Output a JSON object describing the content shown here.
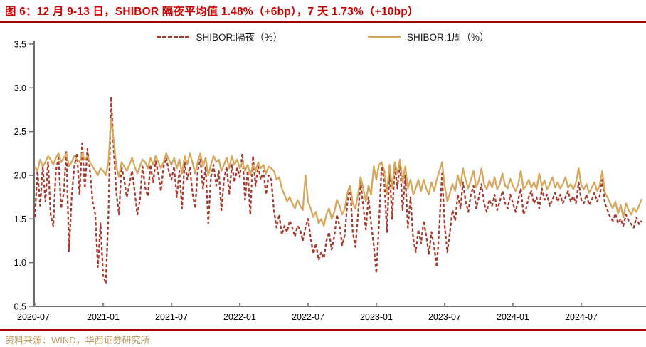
{
  "title": "图 6：12 月 9-13 日，SHIBOR 隔夜平均值 1.48%（+6bp），7 天 1.73%（+10bp）",
  "source": "资料来源：WIND，华西证券研究所",
  "colors": {
    "title_red": "#cc0000",
    "rule_red": "#a40000",
    "overnight_red": "#a63b2f",
    "week1_tan": "#d6a75c",
    "axis_gray": "#6e6e6e",
    "source_tan": "#b9945a"
  },
  "legend": [
    {
      "label": "SHIBOR:隔夜（%）",
      "style": "dashed"
    },
    {
      "label": "SHIBOR:1周（%）",
      "style": "solid"
    }
  ],
  "chart_data": {
    "type": "line",
    "title": "",
    "xlabel": "",
    "ylabel": "",
    "grid": false,
    "legend_position": "top-center",
    "x_unit": "weekly observations from 2020-07 to 2024-12",
    "ylim": [
      0.5,
      3.5
    ],
    "y_ticks": [
      0.5,
      1.0,
      1.5,
      2.0,
      2.5,
      3.0,
      3.5
    ],
    "x_tick_weeks": [
      0,
      26,
      52,
      78,
      104,
      130,
      156,
      182,
      208
    ],
    "x_tick_labels": [
      "2020-07",
      "2021-01",
      "2021-07",
      "2022-01",
      "2022-07",
      "2023-01",
      "2023-07",
      "2024-01",
      "2024-07"
    ],
    "series": [
      {
        "name": "SHIBOR:隔夜（%）",
        "color": "#a63b2f",
        "dash": true,
        "values": [
          1.52,
          2.05,
          1.65,
          2.1,
          1.7,
          2.15,
          1.55,
          1.42,
          2.05,
          2.2,
          1.62,
          1.8,
          2.28,
          1.13,
          1.75,
          2.1,
          2.25,
          1.78,
          2.37,
          1.85,
          2.3,
          2.05,
          1.7,
          1.55,
          0.95,
          1.45,
          0.85,
          0.76,
          1.55,
          2.9,
          2.3,
          1.8,
          1.55,
          2.1,
          1.95,
          1.75,
          1.9,
          2.05,
          1.82,
          1.55,
          1.72,
          2.1,
          1.86,
          1.76,
          2.12,
          1.92,
          2.16,
          2.02,
          1.82,
          2.1,
          2.2,
          2.05,
          1.95,
          2.1,
          1.75,
          2.05,
          1.62,
          2.15,
          1.95,
          2.1,
          1.8,
          1.62,
          2.05,
          2.18,
          1.85,
          2.1,
          1.45,
          1.98,
          2.12,
          1.88,
          2.05,
          1.6,
          1.95,
          2.1,
          1.78,
          2.12,
          1.92,
          2.08,
          1.98,
          2.25,
          1.72,
          2.05,
          1.55,
          2.22,
          1.88,
          2.1,
          1.95,
          2.05,
          1.78,
          2.0,
          1.95,
          1.6,
          1.4,
          1.55,
          1.32,
          1.42,
          1.35,
          1.48,
          1.4,
          1.3,
          1.42,
          1.38,
          1.25,
          1.4,
          1.5,
          1.28,
          1.1,
          1.22,
          1.03,
          1.12,
          1.05,
          1.25,
          1.35,
          1.15,
          1.3,
          1.55,
          1.42,
          1.2,
          1.32,
          1.7,
          1.88,
          1.35,
          1.18,
          1.55,
          1.92,
          1.65,
          1.38,
          1.75,
          1.45,
          1.2,
          0.88,
          1.45,
          2.1,
          1.95,
          1.35,
          2.05,
          1.5,
          2.12,
          1.85,
          2.15,
          1.6,
          2.0,
          1.4,
          1.75,
          1.28,
          1.12,
          1.38,
          1.22,
          1.48,
          1.3,
          1.1,
          1.35,
          1.18,
          0.95,
          1.42,
          2.02,
          1.42,
          1.12,
          1.35,
          1.6,
          1.48,
          1.78,
          1.62,
          1.92,
          1.7,
          1.58,
          1.78,
          1.88,
          1.62,
          1.75,
          1.9,
          1.68,
          1.58,
          1.72,
          1.65,
          1.78,
          1.6,
          1.7,
          1.82,
          1.68,
          1.62,
          1.78,
          1.68,
          1.58,
          1.72,
          1.85,
          1.55,
          1.62,
          1.75,
          1.82,
          1.68,
          1.75,
          1.62,
          1.85,
          1.72,
          1.78,
          1.65,
          1.72,
          1.8,
          1.7,
          1.78,
          1.68,
          1.75,
          1.82,
          1.7,
          1.76,
          1.68,
          1.92,
          1.72,
          1.68,
          1.78,
          1.66,
          1.72,
          1.8,
          1.7,
          1.76,
          1.95,
          1.68,
          1.6,
          1.52,
          1.48,
          1.56,
          1.45,
          1.5,
          1.42,
          1.55,
          1.48,
          1.44,
          1.4,
          1.52,
          1.44,
          1.48
        ]
      },
      {
        "name": "SHIBOR:1周（%）",
        "color": "#d6a75c",
        "dash": false,
        "values": [
          2.1,
          2.05,
          2.18,
          2.1,
          2.15,
          2.22,
          2.18,
          2.12,
          2.2,
          2.25,
          2.15,
          2.2,
          2.25,
          2.1,
          2.15,
          2.22,
          2.18,
          2.15,
          2.25,
          2.18,
          2.22,
          2.15,
          2.1,
          2.05,
          2.0,
          2.08,
          2.05,
          2.0,
          2.15,
          2.65,
          2.4,
          2.1,
          1.98,
          2.15,
          2.1,
          2.05,
          2.12,
          2.2,
          2.1,
          2.02,
          2.1,
          2.18,
          2.15,
          2.08,
          2.2,
          2.12,
          2.22,
          2.15,
          2.08,
          2.15,
          2.25,
          2.18,
          2.12,
          2.2,
          2.08,
          2.18,
          2.02,
          2.22,
          2.12,
          2.25,
          2.15,
          2.02,
          2.15,
          2.25,
          2.1,
          2.2,
          2.0,
          2.12,
          2.22,
          2.15,
          2.18,
          2.05,
          2.12,
          2.2,
          2.08,
          2.22,
          2.12,
          2.18,
          2.08,
          2.15,
          2.05,
          2.12,
          2.0,
          2.12,
          2.05,
          2.15,
          2.08,
          2.12,
          2.02,
          2.1,
          2.08,
          2.05,
          1.95,
          1.98,
          1.85,
          1.78,
          1.7,
          1.75,
          1.68,
          1.62,
          1.72,
          1.65,
          1.6,
          2.0,
          1.7,
          1.62,
          1.52,
          1.58,
          1.45,
          1.5,
          1.42,
          1.55,
          1.62,
          1.5,
          1.58,
          1.72,
          1.65,
          1.55,
          1.62,
          1.8,
          1.88,
          1.68,
          1.62,
          1.78,
          1.98,
          1.85,
          1.7,
          1.88,
          1.78,
          2.1,
          1.95,
          2.12,
          2.15,
          2.05,
          1.78,
          2.12,
          1.85,
          2.15,
          2.02,
          2.18,
          1.92,
          2.1,
          1.85,
          1.95,
          1.78,
          1.85,
          1.95,
          1.82,
          1.95,
          1.85,
          1.78,
          1.92,
          1.82,
          1.95,
          2.05,
          2.15,
          1.88,
          1.7,
          1.8,
          1.9,
          1.82,
          2.0,
          1.88,
          2.08,
          1.95,
          1.85,
          1.95,
          2.05,
          1.86,
          1.94,
          2.08,
          1.9,
          1.84,
          1.94,
          1.86,
          1.98,
          1.84,
          1.9,
          2.02,
          1.88,
          1.85,
          1.96,
          1.88,
          1.82,
          1.9,
          2.05,
          1.84,
          1.88,
          1.95,
          1.86,
          1.92,
          1.84,
          2.02,
          1.88,
          1.94,
          1.84,
          1.9,
          1.98,
          1.86,
          1.92,
          1.85,
          1.9,
          1.98,
          1.86,
          1.9,
          1.84,
          1.92,
          2.08,
          1.88,
          1.84,
          1.9,
          1.8,
          1.86,
          1.92,
          1.82,
          1.88,
          2.05,
          1.8,
          1.75,
          1.68,
          1.62,
          1.7,
          1.56,
          1.66,
          1.52,
          1.68,
          1.6,
          1.55,
          1.62,
          1.58,
          1.65,
          1.73
        ]
      }
    ]
  }
}
